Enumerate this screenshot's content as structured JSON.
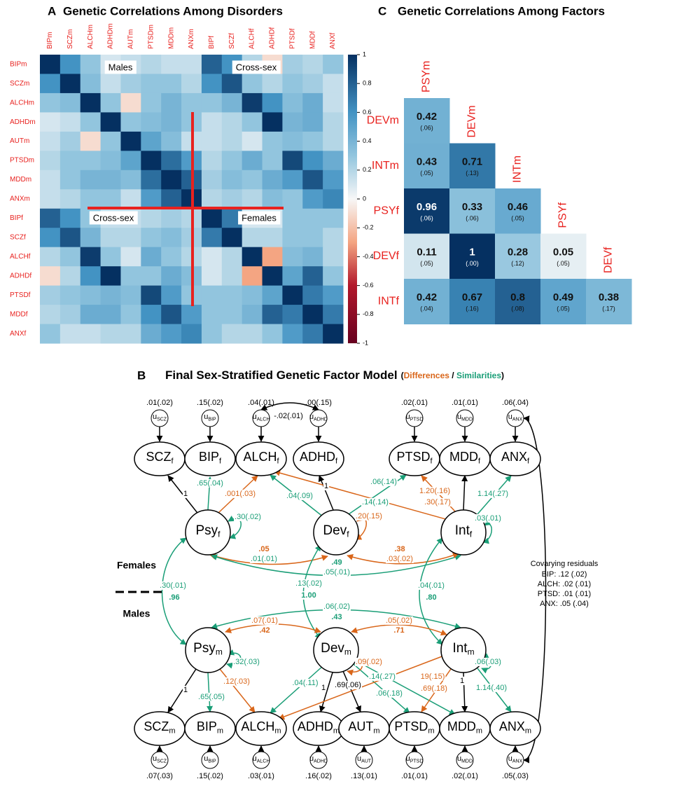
{
  "panel_a": {
    "label": "A",
    "title": "Genetic Correlations Among Disorders",
    "labels": [
      "BIPm",
      "SCZm",
      "ALCHm",
      "ADHDm",
      "AUTm",
      "PTSDm",
      "MDDm",
      "ANXm",
      "BIPf",
      "SCZf",
      "ALCHf",
      "ADHDf",
      "PTSDf",
      "MDDf",
      "ANXf"
    ],
    "values": [
      [
        1,
        0.6,
        0.3,
        0.1,
        0.15,
        0.2,
        0.15,
        0.15,
        0.8,
        0.6,
        0.2,
        -0.1,
        0.25,
        0.2,
        0.3
      ],
      [
        0.6,
        1,
        0.35,
        0.15,
        0.25,
        0.3,
        0.3,
        0.2,
        0.6,
        0.85,
        0.3,
        0.2,
        0.3,
        0.25,
        0.15
      ],
      [
        0.3,
        0.35,
        1,
        0.3,
        -0.1,
        0.3,
        0.4,
        0.3,
        0.3,
        0.4,
        0.95,
        0.6,
        0.35,
        0.45,
        0.15
      ],
      [
        0.1,
        0.15,
        0.3,
        1,
        0.3,
        0.35,
        0.4,
        0.3,
        0.15,
        0.2,
        0.3,
        1,
        0.4,
        0.45,
        0.2
      ],
      [
        0.15,
        0.25,
        -0.1,
        0.3,
        1,
        0.5,
        0.35,
        0.15,
        0.15,
        0.2,
        0.1,
        0.3,
        0.35,
        0.3,
        0.2
      ],
      [
        0.2,
        0.3,
        0.3,
        0.35,
        0.5,
        1,
        0.75,
        0.55,
        0.2,
        0.3,
        0.45,
        0.3,
        0.9,
        0.6,
        0.45
      ],
      [
        0.15,
        0.3,
        0.4,
        0.4,
        0.35,
        0.75,
        1,
        0.8,
        0.25,
        0.35,
        0.3,
        0.45,
        0.55,
        0.85,
        0.55
      ],
      [
        0.15,
        0.2,
        0.3,
        0.3,
        0.15,
        0.55,
        0.8,
        1,
        0.2,
        0.25,
        0.2,
        0.35,
        0.3,
        0.55,
        0.65
      ],
      [
        0.8,
        0.6,
        0.3,
        0.15,
        0.15,
        0.2,
        0.25,
        0.2,
        1,
        0.7,
        0.1,
        0.1,
        0.3,
        0.3,
        0.3
      ],
      [
        0.6,
        0.85,
        0.4,
        0.2,
        0.2,
        0.3,
        0.35,
        0.25,
        0.7,
        1,
        0.2,
        0.2,
        0.3,
        0.3,
        0.2
      ],
      [
        0.2,
        0.3,
        0.95,
        0.3,
        0.1,
        0.45,
        0.3,
        0.2,
        0.1,
        0.2,
        1,
        -0.3,
        0.35,
        0.4,
        0.2
      ],
      [
        -0.1,
        0.2,
        0.6,
        1,
        0.3,
        0.3,
        0.45,
        0.35,
        0.1,
        0.2,
        -0.3,
        1,
        0.5,
        0.8,
        0.3
      ],
      [
        0.25,
        0.3,
        0.35,
        0.4,
        0.35,
        0.9,
        0.55,
        0.3,
        0.3,
        0.3,
        0.35,
        0.5,
        1,
        0.7,
        0.55
      ],
      [
        0.2,
        0.25,
        0.45,
        0.45,
        0.3,
        0.6,
        0.85,
        0.55,
        0.3,
        0.3,
        0.4,
        0.8,
        0.7,
        1,
        0.7
      ],
      [
        0.3,
        0.15,
        0.15,
        0.2,
        0.2,
        0.45,
        0.55,
        0.65,
        0.3,
        0.2,
        0.2,
        0.3,
        0.55,
        0.7,
        1
      ]
    ],
    "clim": [
      -1,
      1
    ],
    "colorbar_ticks": [
      1,
      0.8,
      0.6,
      0.4,
      0.2,
      0,
      -0.2,
      -0.4,
      -0.6,
      -0.8,
      -1
    ],
    "annotations": [
      "Males",
      "Cross-sex",
      "Cross-sex",
      "Females"
    ]
  },
  "panel_c": {
    "label": "C",
    "title": "Genetic Correlations Among Factors",
    "columns": [
      "PSYm",
      "DEVm",
      "INTm",
      "PSYf",
      "DEVf"
    ],
    "rows": [
      {
        "label": "DEVm",
        "cells": [
          {
            "value": 0.42,
            "se": "(.06)"
          }
        ]
      },
      {
        "label": "INTm",
        "cells": [
          {
            "value": 0.43,
            "se": "(.05)"
          },
          {
            "value": 0.71,
            "se": "(.13)"
          }
        ]
      },
      {
        "label": "PSYf",
        "cells": [
          {
            "value": 0.96,
            "se": "(.06)"
          },
          {
            "value": 0.33,
            "se": "(.06)"
          },
          {
            "value": 0.46,
            "se": "(.05)"
          }
        ]
      },
      {
        "label": "DEVf",
        "cells": [
          {
            "value": 0.11,
            "se": "(.05)"
          },
          {
            "value": 1,
            "se": "(.00)"
          },
          {
            "value": 0.28,
            "se": "(.12)"
          },
          {
            "value": 0.05,
            "se": "(.05)"
          }
        ]
      },
      {
        "label": "INTf",
        "cells": [
          {
            "value": 0.42,
            "se": "(.04)"
          },
          {
            "value": 0.67,
            "se": "(.16)"
          },
          {
            "value": 0.8,
            "se": "(.08)"
          },
          {
            "value": 0.49,
            "se": "(.05)"
          },
          {
            "value": 0.38,
            "se": "(.17)"
          }
        ]
      }
    ]
  },
  "panel_b": {
    "label": "B",
    "title": "Final Sex-Stratified Genetic Factor Model",
    "legend": {
      "open": "(",
      "differences": "Differences",
      "sep": " / ",
      "similarities": "Similarities",
      "close": ")"
    },
    "residual_symbol": "u",
    "female_indicators": [
      {
        "name": "SCZ",
        "sub": "f",
        "u_sub": "SCZ",
        "residual": ".01(.02)"
      },
      {
        "name": "BIP",
        "sub": "f",
        "u_sub": "BIP",
        "residual": ".15(.02)"
      },
      {
        "name": "ALCH",
        "sub": "f",
        "u_sub": "ALCH",
        "residual": ".04(.01)"
      },
      {
        "name": "ADHD",
        "sub": "f",
        "u_sub": "ADHD",
        "residual": ".00(.15)"
      },
      {
        "name": "PTSD",
        "sub": "f",
        "u_sub": "PTSD",
        "residual": ".02(.01)"
      },
      {
        "name": "MDD",
        "sub": "f",
        "u_sub": "MDD",
        "residual": ".01(.01)"
      },
      {
        "name": "ANX",
        "sub": "f",
        "u_sub": "ANX",
        "residual": ".06(.04)"
      }
    ],
    "male_indicators": [
      {
        "name": "SCZ",
        "sub": "m",
        "u_sub": "SCZ",
        "residual": ".07(.03)"
      },
      {
        "name": "BIP",
        "sub": "m",
        "u_sub": "BIP",
        "residual": ".15(.02)"
      },
      {
        "name": "ALCH",
        "sub": "m",
        "u_sub": "ALCH",
        "residual": ".03(.01)"
      },
      {
        "name": "ADHD",
        "sub": "m",
        "u_sub": "ADHD",
        "residual": ".16(.02)"
      },
      {
        "name": "AUT",
        "sub": "m",
        "u_sub": "AUT",
        "residual": ".13(.01)"
      },
      {
        "name": "PTSD",
        "sub": "m",
        "u_sub": "PTSD",
        "residual": ".01(.01)"
      },
      {
        "name": "MDD",
        "sub": "m",
        "u_sub": "MDD",
        "residual": ".02(.01)"
      },
      {
        "name": "ANX",
        "sub": "m",
        "u_sub": "ANX",
        "residual": ".05(.03)"
      }
    ],
    "female_factors": [
      {
        "name": "Psy",
        "sub": "f"
      },
      {
        "name": "Dev",
        "sub": "f"
      },
      {
        "name": "Int",
        "sub": "f"
      }
    ],
    "male_factors": [
      {
        "name": "Psy",
        "sub": "m"
      },
      {
        "name": "Dev",
        "sub": "m"
      },
      {
        "name": "Int",
        "sub": "m"
      }
    ],
    "edge_labels": [
      "1",
      ".65(.04)",
      ".001(.03)",
      ".30(.02)",
      ".04(.09)",
      "1",
      ".06(.14)",
      ".14(.14)",
      ".20(.15)",
      "1.20(.16)",
      ".30(.17)",
      "1.14(.27)",
      ".03(.01)",
      ".05",
      ".01(.01)",
      ".38",
      ".03(.02)",
      ".49",
      ".05(.01)",
      ".30(.01)",
      ".96",
      ".13(.02)",
      "1.00",
      ".04(.01)",
      ".80",
      ".06(.02)",
      ".43",
      ".07(.01)",
      ".42",
      ".05(.02)",
      ".71",
      ".32(.03)",
      ".09(.02)",
      ".06(.03)",
      "1",
      ".65(.05)",
      ".12(.03)",
      ".04(.11)",
      "1",
      ".69(.06)",
      ".14(.27)",
      ".06(.18)",
      "19(.15)",
      ".69(.18)",
      "1",
      "1.14(.40)",
      "-.02(.01)"
    ],
    "group_labels": {
      "female": "Females",
      "male": "Males"
    },
    "covarying_residuals": {
      "title": "Covarying residuals",
      "items": [
        "BIP: .12 (.02)",
        "ALCH: .02 (.01)",
        "PTSD: .01 (.01)",
        "ANX: .05 (.04)"
      ]
    }
  }
}
